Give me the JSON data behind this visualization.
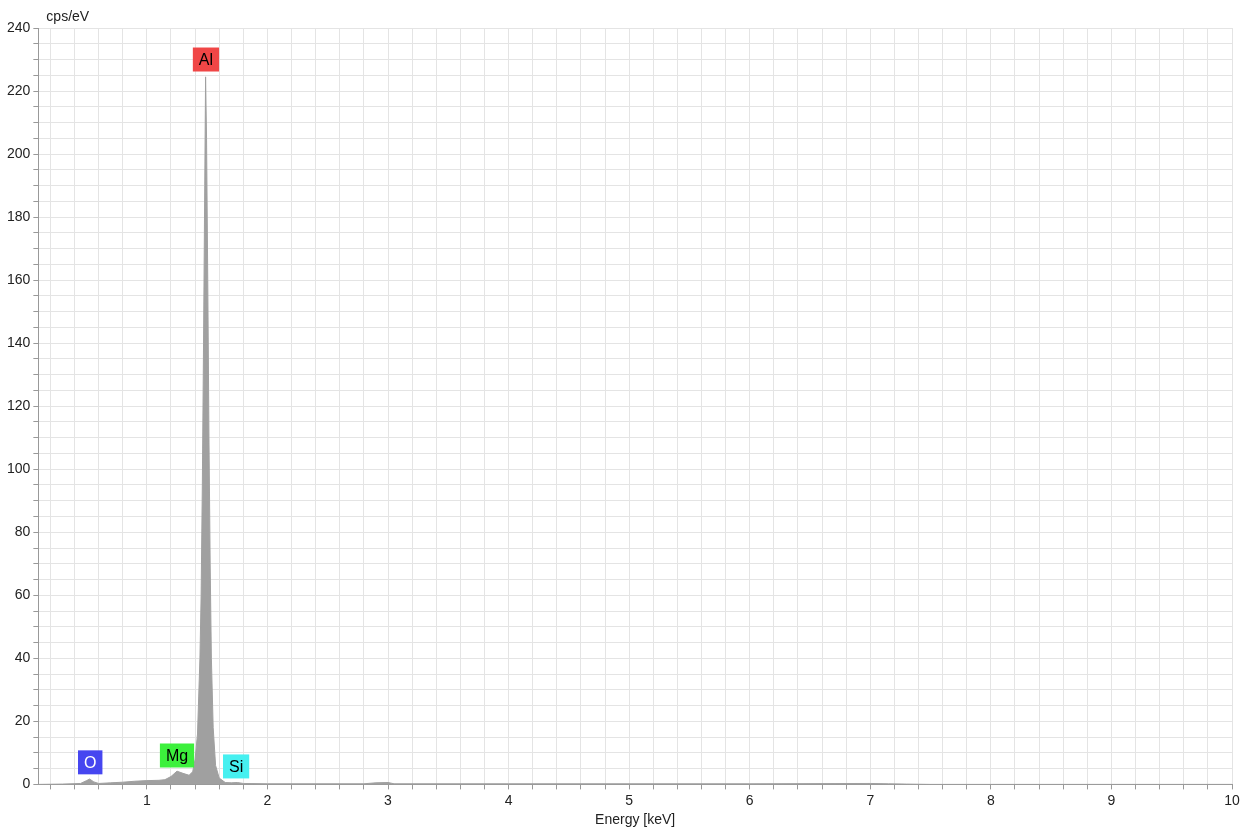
{
  "chart_data": {
    "type": "area",
    "xlabel": "Energy [keV]",
    "ylabel": "cps/eV",
    "x": [
      0.1,
      0.3,
      0.45,
      0.5,
      0.525,
      0.56,
      0.6,
      0.7,
      0.8,
      0.9,
      1.0,
      1.1,
      1.15,
      1.2,
      1.25,
      1.3,
      1.35,
      1.38,
      1.4,
      1.42,
      1.44,
      1.45,
      1.46,
      1.47,
      1.48,
      1.487,
      1.495,
      1.505,
      1.515,
      1.525,
      1.535,
      1.55,
      1.57,
      1.6,
      1.65,
      1.7,
      1.75,
      1.8,
      2.0,
      2.8,
      2.9,
      3.0,
      3.05,
      4.0,
      6.0,
      7.0,
      7.15,
      7.3,
      7.5,
      10
    ],
    "series": [
      {
        "color": "#a0a0a0",
        "values": [
          0,
          0.1,
          0.3,
          1.2,
          1.7,
          0.8,
          0.3,
          0.5,
          0.7,
          1.0,
          1.2,
          1.3,
          1.5,
          2.5,
          4.2,
          3.5,
          2.9,
          4,
          8,
          16,
          40,
          60,
          95,
          140,
          190,
          224.5,
          205,
          160,
          110,
          70,
          40,
          18,
          6,
          2,
          0.6,
          0.5,
          0.6,
          0.3,
          0.2,
          0.2,
          0.5,
          0.6,
          0.2,
          0.2,
          0.2,
          0.3,
          0.2,
          0.1,
          0,
          0
        ]
      }
    ],
    "xlim": [
      0.1,
      10
    ],
    "xticks": [
      {
        "value": 0.2,
        "label": null
      },
      {
        "value": 0.4,
        "label": null
      },
      {
        "value": 0.6,
        "label": null
      },
      {
        "value": 0.8,
        "label": null
      },
      1,
      {
        "value": 1.2,
        "label": null
      },
      {
        "value": 1.4,
        "label": null
      },
      {
        "value": 1.6,
        "label": null
      },
      {
        "value": 1.8,
        "label": null
      },
      2,
      {
        "value": 2.2,
        "label": null
      },
      {
        "value": 2.4,
        "label": null
      },
      {
        "value": 2.6,
        "label": null
      },
      {
        "value": 2.8,
        "label": null
      },
      3,
      {
        "value": 3.2,
        "label": null
      },
      {
        "value": 3.4,
        "label": null
      },
      {
        "value": 3.6,
        "label": null
      },
      {
        "value": 3.8,
        "label": null
      },
      4,
      {
        "value": 4.2,
        "label": null
      },
      {
        "value": 4.4,
        "label": null
      },
      {
        "value": 4.6,
        "label": null
      },
      {
        "value": 4.8,
        "label": null
      },
      5,
      {
        "value": 5.2,
        "label": null
      },
      {
        "value": 5.4,
        "label": null
      },
      {
        "value": 5.6,
        "label": null
      },
      {
        "value": 5.8,
        "label": null
      },
      6,
      {
        "value": 6.2,
        "label": null
      },
      {
        "value": 6.4,
        "label": null
      },
      {
        "value": 6.6,
        "label": null
      },
      {
        "value": 6.8,
        "label": null
      },
      7,
      {
        "value": 7.2,
        "label": null
      },
      {
        "value": 7.4,
        "label": null
      },
      {
        "value": 7.6,
        "label": null
      },
      {
        "value": 7.8,
        "label": null
      },
      8,
      {
        "value": 8.2,
        "label": null
      },
      {
        "value": 8.4,
        "label": null
      },
      {
        "value": 8.6,
        "label": null
      },
      {
        "value": 8.8,
        "label": null
      },
      9,
      {
        "value": 9.2,
        "label": null
      },
      {
        "value": 9.4,
        "label": null
      },
      {
        "value": 9.6,
        "label": null
      },
      {
        "value": 9.8,
        "label": null
      },
      10
    ],
    "ylim": [
      0,
      240
    ],
    "yticks": [
      0,
      {
        "value": 5,
        "label": null
      },
      {
        "value": 10,
        "label": null
      },
      {
        "value": 15,
        "label": null
      },
      20,
      {
        "value": 25,
        "label": null
      },
      {
        "value": 30,
        "label": null
      },
      {
        "value": 35,
        "label": null
      },
      40,
      {
        "value": 45,
        "label": null
      },
      {
        "value": 50,
        "label": null
      },
      {
        "value": 55,
        "label": null
      },
      60,
      {
        "value": 65,
        "label": null
      },
      {
        "value": 70,
        "label": null
      },
      {
        "value": 75,
        "label": null
      },
      80,
      {
        "value": 85,
        "label": null
      },
      {
        "value": 90,
        "label": null
      },
      {
        "value": 95,
        "label": null
      },
      100,
      {
        "value": 105,
        "label": null
      },
      {
        "value": 110,
        "label": null
      },
      {
        "value": 115,
        "label": null
      },
      120,
      {
        "value": 125,
        "label": null
      },
      {
        "value": 130,
        "label": null
      },
      {
        "value": 135,
        "label": null
      },
      140,
      {
        "value": 145,
        "label": null
      },
      {
        "value": 150,
        "label": null
      },
      {
        "value": 155,
        "label": null
      },
      160,
      {
        "value": 165,
        "label": null
      },
      {
        "value": 170,
        "label": null
      },
      {
        "value": 175,
        "label": null
      },
      180,
      {
        "value": 185,
        "label": null
      },
      {
        "value": 190,
        "label": null
      },
      {
        "value": 195,
        "label": null
      },
      200,
      {
        "value": 205,
        "label": null
      },
      {
        "value": 210,
        "label": null
      },
      {
        "value": 215,
        "label": null
      },
      220,
      {
        "value": 225,
        "label": null
      },
      {
        "value": 230,
        "label": null
      },
      {
        "value": 235,
        "label": null
      },
      240
    ],
    "grid": true,
    "annotations": [
      {
        "text": "O",
        "x": 0.53,
        "y": 7
      },
      {
        "text": "Mg",
        "x": 1.25,
        "y": 9.2
      },
      {
        "text": "Al",
        "x": 1.49,
        "y": 230
      },
      {
        "text": "Si",
        "x": 1.74,
        "y": 5.7
      }
    ]
  }
}
